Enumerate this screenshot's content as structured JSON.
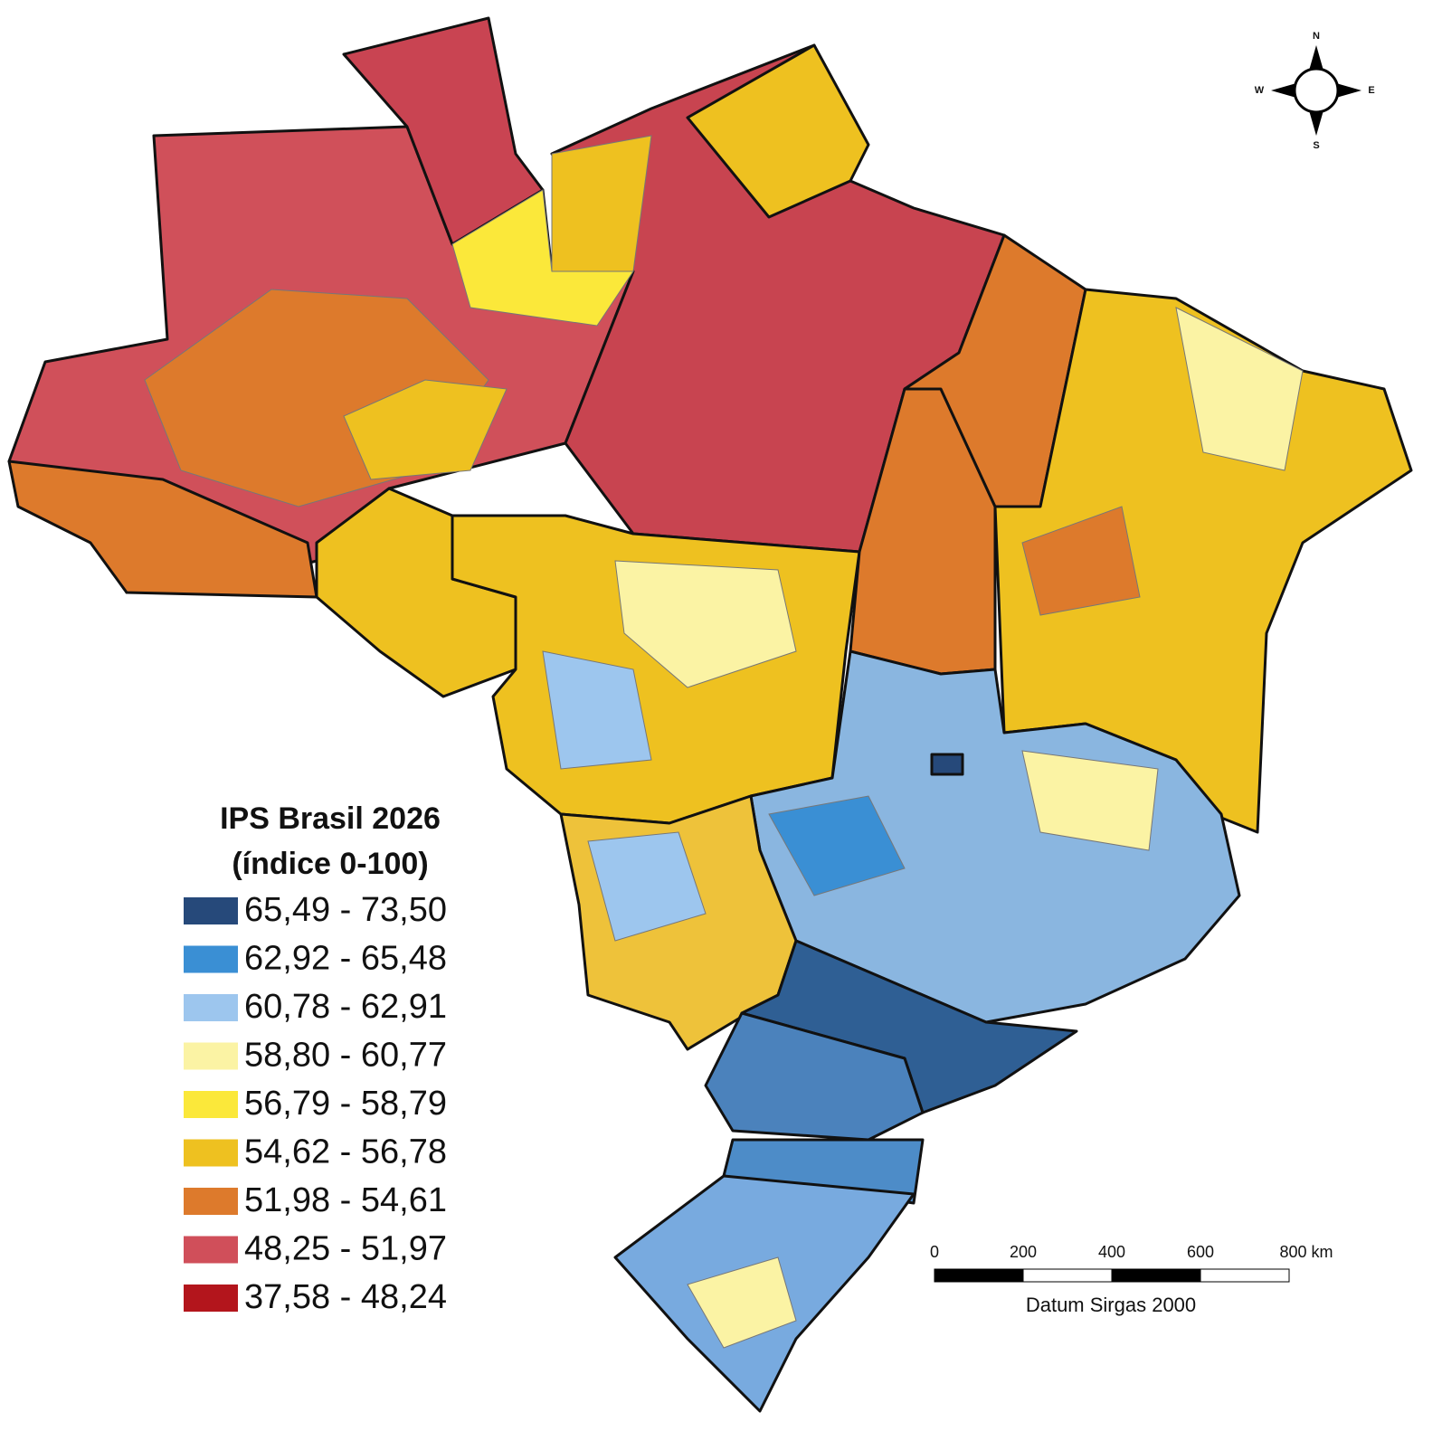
{
  "legend": {
    "title": "IPS Brasil 2026",
    "subtitle": "(índice 0-100)",
    "classes": [
      {
        "label": "65,49 - 73,50",
        "color": "#26497a"
      },
      {
        "label": "62,92 - 65,48",
        "color": "#3a8fd4"
      },
      {
        "label": "60,78 - 62,91",
        "color": "#9dc6ee"
      },
      {
        "label": "58,80 - 60,77",
        "color": "#fbf3a4"
      },
      {
        "label": "56,79 - 58,79",
        "color": "#fbe83a"
      },
      {
        "label": "54,62 - 56,78",
        "color": "#eec120"
      },
      {
        "label": "51,98 - 54,61",
        "color": "#dd7a2c"
      },
      {
        "label": "48,25 - 51,97",
        "color": "#d04f5a"
      },
      {
        "label": "37,58 - 48,24",
        "color": "#b3151c"
      }
    ]
  },
  "scale_bar": {
    "ticks": [
      "0",
      "200",
      "400",
      "600",
      "800 km"
    ],
    "datum": "Datum Sirgas 2000"
  },
  "compass": {
    "north": "N",
    "east": "E",
    "south": "S",
    "west": "W"
  }
}
